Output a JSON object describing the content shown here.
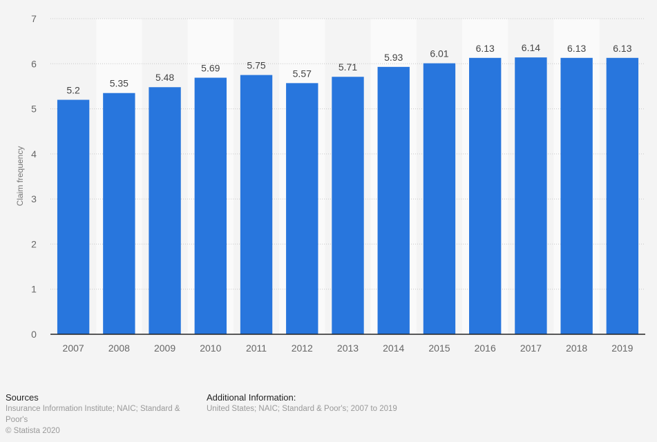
{
  "chart_data": {
    "type": "bar",
    "title": "",
    "xlabel": "",
    "ylabel": "Claim frequency",
    "categories": [
      "2007",
      "2008",
      "2009",
      "2010",
      "2011",
      "2012",
      "2013",
      "2014",
      "2015",
      "2016",
      "2017",
      "2018",
      "2019"
    ],
    "values": [
      5.2,
      5.35,
      5.48,
      5.69,
      5.75,
      5.57,
      5.71,
      5.93,
      6.01,
      6.13,
      6.14,
      6.13,
      6.13
    ],
    "value_labels": [
      "5.2",
      "5.35",
      "5.48",
      "5.69",
      "5.75",
      "5.57",
      "5.71",
      "5.93",
      "6.01",
      "6.13",
      "6.14",
      "6.13",
      "6.13"
    ],
    "ylim": [
      0,
      7
    ],
    "yticks": [
      0,
      1,
      2,
      3,
      4,
      5,
      6,
      7
    ],
    "grid": true,
    "legend": "none",
    "bar_color": "#2876dd"
  },
  "footer": {
    "sources_heading": "Sources",
    "sources_text": "Insurance Information Institute; NAIC; Standard & Poor's",
    "copyright": "© Statista 2020",
    "additional_heading": "Additional Information:",
    "additional_text": "United States; NAIC; Standard & Poor's; 2007 to 2019"
  }
}
